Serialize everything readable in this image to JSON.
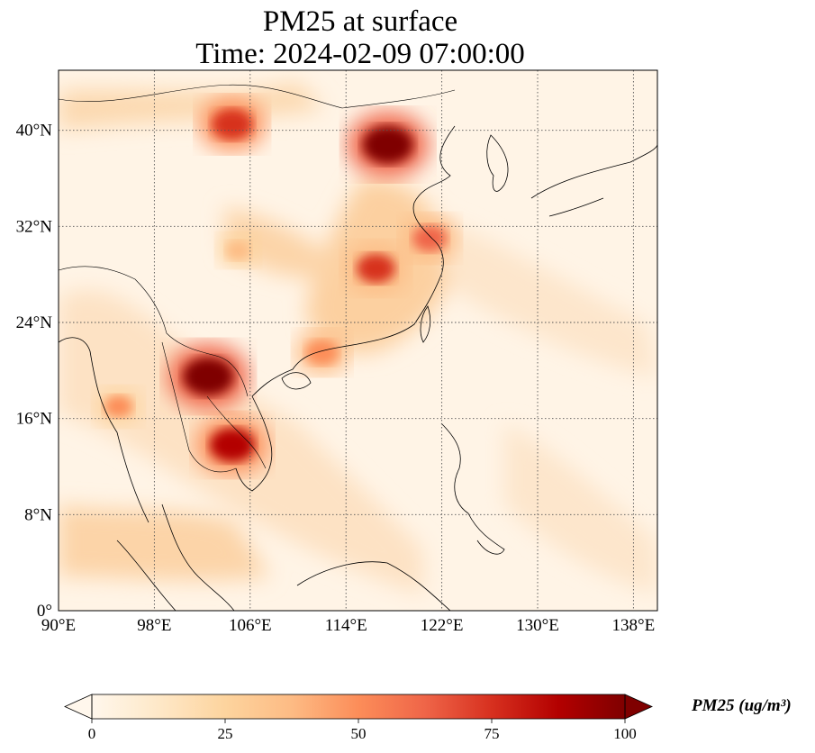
{
  "title": {
    "line1": "PM25 at surface",
    "line2": "Time: 2024-02-09 07:00:00"
  },
  "map": {
    "projection": "PlateCarree",
    "extent": {
      "lon_min": 90,
      "lon_max": 140,
      "lat_min": 0,
      "lat_max": 45
    },
    "gridlines": "dotted",
    "lon_ticks": [
      {
        "value": 90,
        "label": "90°E"
      },
      {
        "value": 98,
        "label": "98°E"
      },
      {
        "value": 106,
        "label": "106°E"
      },
      {
        "value": 114,
        "label": "114°E"
      },
      {
        "value": 122,
        "label": "122°E"
      },
      {
        "value": 130,
        "label": "130°E"
      },
      {
        "value": 138,
        "label": "138°E"
      }
    ],
    "lat_ticks": [
      {
        "value": 0,
        "label": "0°"
      },
      {
        "value": 8,
        "label": "8°N"
      },
      {
        "value": 16,
        "label": "16°N"
      },
      {
        "value": 24,
        "label": "24°N"
      },
      {
        "value": 32,
        "label": "32°N"
      },
      {
        "value": 40,
        "label": "40°N"
      }
    ],
    "hotspots": [
      {
        "name": "north-china-plain",
        "lon": 117.5,
        "lat": 38.8,
        "level": 100
      },
      {
        "name": "northern-laos",
        "lon": 102.5,
        "lat": 19.5,
        "level": 100
      },
      {
        "name": "cambodia",
        "lon": 104.5,
        "lat": 13.8,
        "level": 85
      },
      {
        "name": "inner-mongolia",
        "lon": 104.5,
        "lat": 40.5,
        "level": 75
      },
      {
        "name": "central-china",
        "lon": 116.5,
        "lat": 28.5,
        "level": 70
      },
      {
        "name": "yangtze-delta",
        "lon": 121,
        "lat": 31,
        "level": 60
      },
      {
        "name": "south-china-coast",
        "lon": 112,
        "lat": 21.5,
        "level": 55
      },
      {
        "name": "myanmar-coast",
        "lon": 95,
        "lat": 17,
        "level": 45
      },
      {
        "name": "sichuan",
        "lon": 105,
        "lat": 30,
        "level": 35
      }
    ]
  },
  "colorbar": {
    "label": "PM25 (ug/m³)",
    "min": 0,
    "max": 100,
    "extend": "both",
    "colormap": "OrRd",
    "colors": [
      "#fff7ec",
      "#fee8c8",
      "#fdd49e",
      "#fdbb84",
      "#fc8d59",
      "#ef6548",
      "#d7301f",
      "#b30000",
      "#7f0000"
    ],
    "ticks": [
      "0",
      "25",
      "50",
      "75",
      "100"
    ]
  }
}
